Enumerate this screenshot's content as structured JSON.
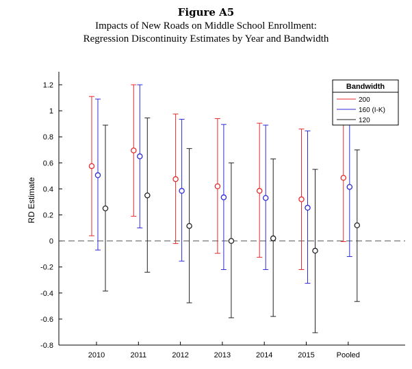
{
  "figure": {
    "title": "Figure A5",
    "subtitle_lines": [
      "Impacts of New Roads on Middle School Enrollment:",
      "Regression Discontinuity Estimates by Year and Bandwidth"
    ]
  },
  "chart_data": {
    "type": "scatter",
    "title": "",
    "xlabel": "",
    "ylabel": "RD Estimate",
    "categories": [
      "2010",
      "2011",
      "2012",
      "2013",
      "2014",
      "2015",
      "Pooled"
    ],
    "ylim": [
      -0.8,
      1.3
    ],
    "yticks": [
      -0.8,
      -0.6,
      -0.4,
      -0.2,
      0,
      0.2,
      0.4,
      0.6,
      0.8,
      1,
      1.2
    ],
    "ytick_labels": [
      "-0.8",
      "-0.6",
      "-0.4",
      "-0.2",
      "0",
      "0.2",
      "0.4",
      "0.6",
      "0.8",
      "1",
      "1.2"
    ],
    "reference_line": 0,
    "grid": false,
    "legend": {
      "title": "Bandwidth",
      "placement": "top-right"
    },
    "series": [
      {
        "name": "200",
        "color": "#e8282a",
        "estimates": [
          0.575,
          0.695,
          0.475,
          0.42,
          0.385,
          0.32,
          0.485
        ],
        "ci_low": [
          0.04,
          0.19,
          -0.02,
          -0.095,
          -0.125,
          -0.22,
          -0.005
        ],
        "ci_high": [
          1.11,
          1.2,
          0.975,
          0.94,
          0.905,
          0.86,
          0.97
        ]
      },
      {
        "name": "160 (I-K)",
        "color": "#2b2bd9",
        "estimates": [
          0.505,
          0.65,
          0.385,
          0.335,
          0.33,
          0.255,
          0.415
        ],
        "ci_low": [
          -0.07,
          0.1,
          -0.155,
          -0.22,
          -0.22,
          -0.325,
          -0.12
        ],
        "ci_high": [
          1.09,
          1.2,
          0.935,
          0.895,
          0.89,
          0.845,
          0.96
        ]
      },
      {
        "name": "120",
        "color": "#222222",
        "estimates": [
          0.25,
          0.35,
          0.115,
          0.0,
          0.02,
          -0.075,
          0.12
        ],
        "ci_low": [
          -0.385,
          -0.24,
          -0.475,
          -0.59,
          -0.58,
          -0.705,
          -0.465
        ],
        "ci_high": [
          0.89,
          0.945,
          0.71,
          0.6,
          0.63,
          0.55,
          0.7
        ]
      }
    ]
  }
}
